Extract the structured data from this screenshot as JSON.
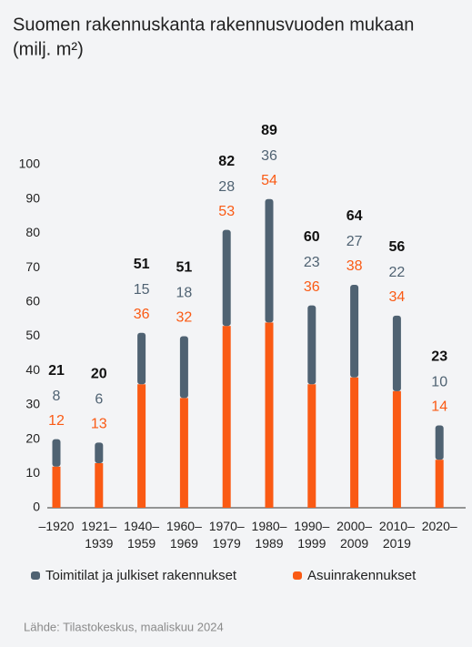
{
  "chart_data": {
    "type": "stacked_bar",
    "title": "Suomen rakennuskanta rakennusvuoden mukaan",
    "subtitle": "(milj. m²)",
    "categories": [
      "–1920",
      "1921–1939",
      "1940–1959",
      "1960–1969",
      "1970–1979",
      "1980–1989",
      "1990–1999",
      "2000–2009",
      "2010–2019",
      "2020–"
    ],
    "series": [
      {
        "name": "Asuinrakennukset",
        "color": "#fa5a14",
        "values": [
          12,
          13,
          36,
          32,
          53,
          54,
          36,
          38,
          34,
          14
        ]
      },
      {
        "name": "Toimitilat ja julkiset rakennukset",
        "color": "#4f6272",
        "values": [
          8,
          6,
          15,
          18,
          28,
          36,
          23,
          27,
          22,
          10
        ]
      }
    ],
    "totals": [
      21,
      20,
      51,
      51,
      82,
      89,
      60,
      64,
      56,
      23
    ],
    "ylim": [
      0,
      100
    ],
    "yticks": [
      0,
      10,
      20,
      30,
      40,
      50,
      60,
      70,
      80,
      90,
      100
    ],
    "grid": false,
    "source": "Lähde: Tilastokeskus, maaliskuu 2024"
  }
}
